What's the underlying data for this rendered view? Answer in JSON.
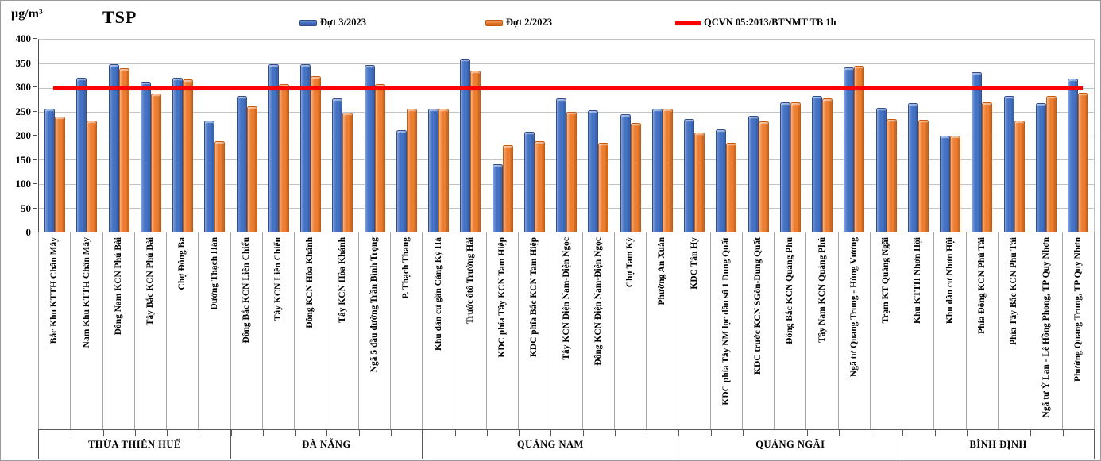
{
  "chart_data": {
    "type": "bar",
    "title": "TSP",
    "unit_label": "µg/m³",
    "ylim": [
      0,
      400
    ],
    "ytick_step": 50,
    "grid": true,
    "legend_position": "top",
    "reference_line": {
      "label": "QCVN 05:2013/BTNMT  TB 1h",
      "value": 300,
      "color": "#FE0000"
    },
    "series": [
      {
        "name": "Đợt 3/2023",
        "color": "#4472C4",
        "border": "#2E4E8F",
        "light": "#7B9BD6",
        "dark": "#30549B",
        "values": [
          256,
          320,
          348,
          312,
          320,
          231,
          282,
          349,
          348,
          278,
          347,
          211,
          256,
          360,
          140,
          209,
          278,
          253,
          245,
          256,
          234,
          214,
          241,
          269,
          282,
          342,
          258,
          267,
          200,
          333,
          282,
          268,
          319
        ]
      },
      {
        "name": "Đợt 2/2023",
        "color": "#ED7D31",
        "border": "#C55A11",
        "light": "#F4AE7E",
        "dark": "#B85C13",
        "values": [
          240,
          232,
          340,
          288,
          318,
          188,
          261,
          307,
          324,
          248,
          308,
          256,
          257,
          335,
          180,
          189,
          249,
          185,
          226,
          256,
          207,
          185,
          230,
          270,
          277,
          346,
          234,
          233,
          200,
          270,
          231,
          283,
          289
        ]
      }
    ],
    "categories": [
      "Bắc Khu KTTH Chân Mây",
      "Nam Khu KTTH Chân Mây",
      "Đông Nam KCN Phú Bài",
      "Tây Bắc KCN Phú Bài",
      "Chợ Đông Ba",
      "Đường Thạch Hãn",
      "Đông Bắc KCN Liên Chiểu",
      "Tây KCN Liên Chiểu",
      "Đông KCN Hòa Khánh",
      "Tây KCN Hòa Khánh",
      "Ngã 5 đầu đường Trần Bình Trọng",
      "P. Thạch Thang",
      "Khu dân cư gần Cảng Kỳ Hà",
      "Trước ôtô Trường Hải",
      "KDC phía Tây KCN Tam Hiệp",
      "KDC phía Bắc KCN Tam Hiệp",
      "Tây KCN Điện Nam-Điện Ngọc",
      "Đông KCN Điện Nam-Điện Ngọc",
      "Chợ Tam Kỳ",
      "Phường An Xuân",
      "KDC Tân Hy",
      "KDC phía Tây NM lọc dầu số 1 Dung Quất",
      "KDC trước KCN SGòn-Dung Quất",
      "Đông Bắc KCN Quảng Phú",
      "Tây Nam KCN Quảng Phú",
      "Ngã tư Quang Trung - Hùng Vương",
      "Trạm KT Quảng Ngãi",
      "Khu KTTH Nhơn Hội",
      "Khu dân cư Nhơn Hội",
      "Phía Đông KCN Phú Tài",
      "Phía Tây Bắc KCN Phú Tài",
      "Ngã tư Ỷ Lan - Lê Hồng Phong, TP Quy Nhơn",
      "Phường Quang Trung, TP Quy Nhơn"
    ],
    "groups": [
      {
        "label": "THỪA THIÊN HUẾ",
        "count": 6
      },
      {
        "label": "ĐÀ NẴNG",
        "count": 6
      },
      {
        "label": "QUẢNG NAM",
        "count": 8
      },
      {
        "label": "QUẢNG NGÃI",
        "count": 7
      },
      {
        "label": "BÌNH ĐỊNH",
        "count": 6
      }
    ]
  }
}
